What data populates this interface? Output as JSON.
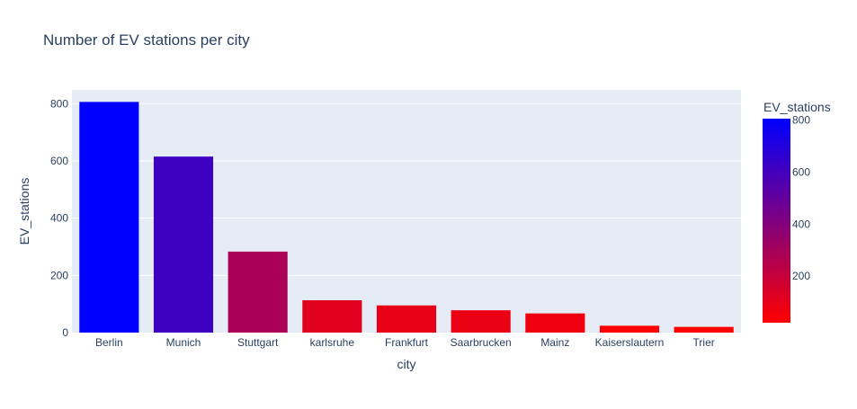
{
  "chart_data": {
    "type": "bar",
    "title": "Number of EV stations per city",
    "xlabel": "city",
    "ylabel": "EV_stations",
    "categories": [
      "Berlin",
      "Munich",
      "Stuttgart",
      "karlsruhe",
      "Frankfurt",
      "Saarbrucken",
      "Mainz",
      "Kaiserslautern",
      "Trier"
    ],
    "values": [
      806,
      615,
      283,
      113,
      95,
      78,
      67,
      24,
      20
    ],
    "ylim": [
      0,
      848
    ],
    "yticks": [
      0,
      200,
      400,
      600,
      800
    ],
    "grid": true,
    "colorbar": {
      "title": "EV_stations",
      "range": [
        20,
        806
      ],
      "ticks": [
        200,
        400,
        600,
        800
      ],
      "color_low": "#ff0000",
      "color_high": "#0000ff"
    },
    "colors": {
      "plot_background": "#e5ecf6",
      "gridline": "#ffffff",
      "text": "#2a3f5f"
    }
  }
}
